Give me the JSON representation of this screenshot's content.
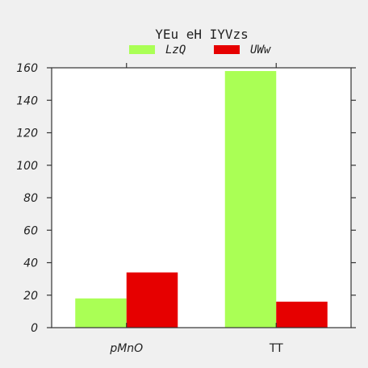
{
  "chart_data": {
    "type": "bar",
    "title": "YEu eH IYVzs",
    "xlabel": "",
    "ylabel": "",
    "categories": [
      "pMnO",
      "TT"
    ],
    "series": [
      {
        "name": "LzQ",
        "values": [
          18,
          158
        ],
        "color": "#aaff55"
      },
      {
        "name": "UWw",
        "values": [
          34,
          16
        ],
        "color": "#e60000"
      }
    ],
    "ylim": [
      0,
      160
    ],
    "yticks": [
      0,
      20,
      40,
      60,
      80,
      100,
      120,
      140,
      160
    ],
    "grid": false,
    "legend": "top-center"
  }
}
